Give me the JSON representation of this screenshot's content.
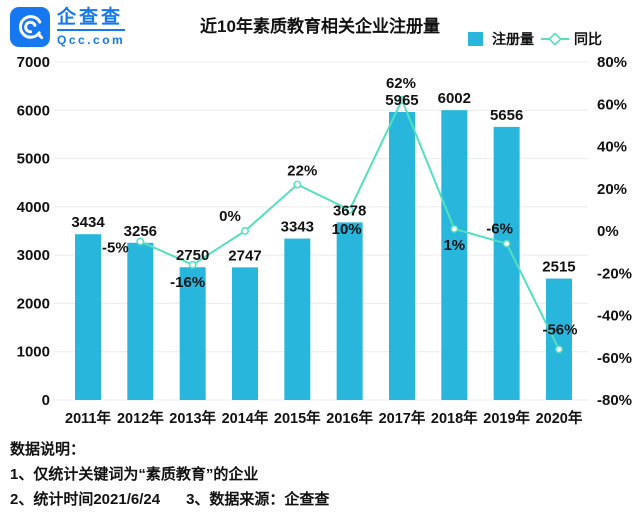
{
  "header": {
    "logo": {
      "brand": "企查查",
      "domain": "Qcc.com"
    },
    "title": "近10年素质教育相关企业注册量",
    "legend": [
      {
        "label": "注册量",
        "type": "bar"
      },
      {
        "label": "同比",
        "type": "line"
      }
    ]
  },
  "colors": {
    "bar": "#29B6DC",
    "line": "#53DFC0",
    "marker_fill": "#FFFFFF",
    "grid": "#EBEBEB",
    "text": "#111111",
    "brand_blue": "#1678F0"
  },
  "chart_data": {
    "type": "bar",
    "title": "近10年素质教育相关企业注册量",
    "categories": [
      "2011年",
      "2012年",
      "2013年",
      "2014年",
      "2015年",
      "2016年",
      "2017年",
      "2018年",
      "2019年",
      "2020年"
    ],
    "series": [
      {
        "name": "注册量",
        "type": "bar",
        "values": [
          3434,
          3256,
          2750,
          2747,
          3343,
          3678,
          5965,
          6002,
          5656,
          2515
        ],
        "labels": [
          "3434",
          "3256",
          "2750",
          "2747",
          "3343",
          "3678",
          "5965",
          "6002",
          "5656",
          "2515"
        ]
      },
      {
        "name": "同比",
        "type": "line",
        "values": [
          null,
          -5,
          -16,
          0,
          22,
          10,
          62,
          1,
          -6,
          -56
        ],
        "labels": [
          null,
          "-5%",
          "-16%",
          "0%",
          "22%",
          "10%",
          "62%",
          "1%",
          "-6%",
          "-56%"
        ],
        "label_offsets": [
          null,
          [
            -25,
            7
          ],
          [
            -5,
            18
          ],
          [
            -15,
            -14
          ],
          [
            5,
            -13
          ],
          [
            -3,
            20
          ],
          [
            -1,
            -16
          ],
          [
            0,
            17
          ],
          [
            -7,
            -14
          ],
          [
            1,
            -19
          ]
        ]
      }
    ],
    "axes": {
      "left": {
        "min": 0,
        "max": 7000,
        "ticks": [
          "7000",
          "6000",
          "5000",
          "4000",
          "3000",
          "2000",
          "1000",
          "0"
        ]
      },
      "right": {
        "min": -80,
        "max": 80,
        "ticks": [
          "80%",
          "60%",
          "40%",
          "20%",
          "0%",
          "-20%",
          "-40%",
          "-60%",
          "-80%"
        ]
      }
    },
    "grid": true,
    "legend_position": "top-right"
  },
  "footer": {
    "heading": "数据说明：",
    "line1": "1、仅统计关键词为“素质教育”的企业",
    "line2": "2、统计时间2021/6/24",
    "line3": "3、数据来源：企查查"
  }
}
